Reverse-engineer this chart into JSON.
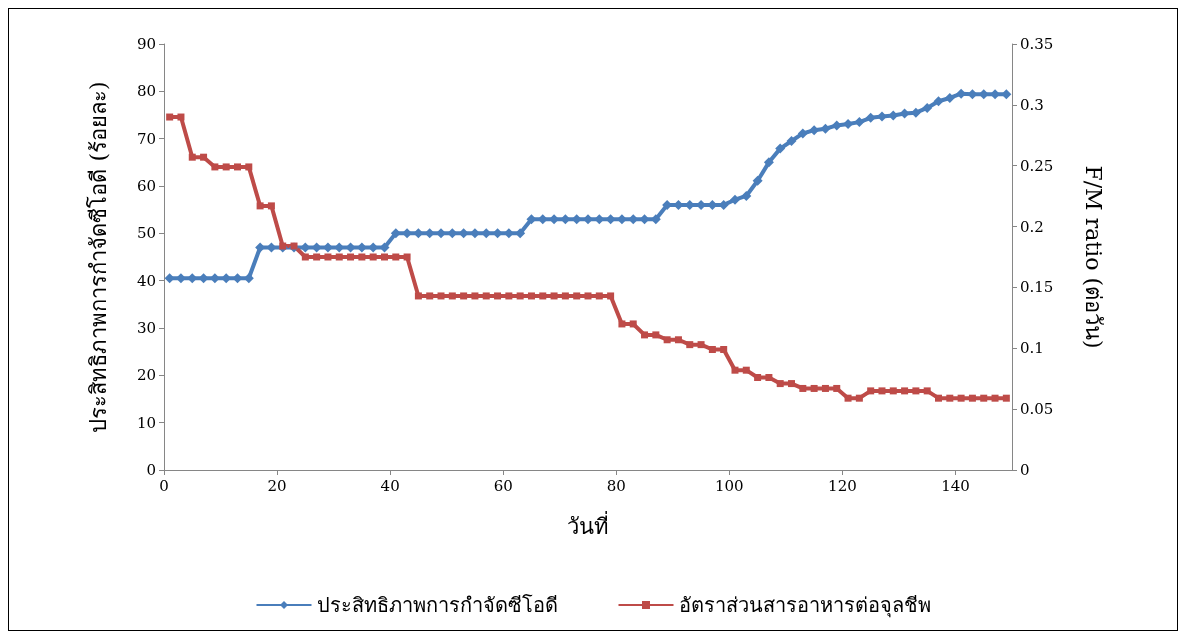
{
  "chart_data": {
    "type": "line",
    "xlabel": "วันที่",
    "ylabel": "ประสิทธิภาพการกำจัดซีโอดี (ร้อยละ)",
    "y2label": "F/M ratio (ต่อวัน)",
    "x": [
      1,
      3,
      5,
      7,
      9,
      11,
      13,
      15,
      17,
      19,
      21,
      23,
      25,
      27,
      29,
      31,
      33,
      35,
      37,
      39,
      41,
      43,
      45,
      47,
      49,
      51,
      53,
      55,
      57,
      59,
      61,
      63,
      65,
      67,
      69,
      71,
      73,
      75,
      77,
      79,
      81,
      83,
      85,
      87,
      89,
      91,
      93,
      95,
      97,
      99,
      101,
      103,
      105,
      107,
      109,
      111,
      113,
      115,
      117,
      119,
      121,
      123,
      125,
      127,
      129,
      131,
      133,
      135,
      137,
      139,
      141,
      143,
      145,
      147,
      149
    ],
    "series": [
      {
        "name": "ประสิทธิภาพการกำจัดซีโอดี",
        "color": "#4a7ebb",
        "marker": "diamond",
        "values": [
          40.5,
          40.5,
          40.5,
          40.5,
          40.5,
          40.5,
          40.5,
          40.5,
          47,
          47,
          47,
          47,
          47,
          47,
          47,
          47,
          47,
          47,
          47,
          47,
          50,
          50,
          50,
          50,
          50,
          50,
          50,
          50,
          50,
          50,
          50,
          50,
          53,
          53,
          53,
          53,
          53,
          53,
          53,
          53,
          53,
          53,
          53,
          53,
          56,
          56,
          56,
          56,
          56,
          56,
          57.1,
          57.9,
          61.1,
          65,
          67.9,
          69.5,
          71.1,
          71.8,
          72.1,
          72.8,
          73.1,
          73.5,
          74.4,
          74.7,
          74.9,
          75.3,
          75.5,
          76.5,
          77.9,
          78.6,
          79.5,
          79.4,
          79.4,
          79.4,
          79.4
        ]
      },
      {
        "name": "อัตราส่วนสารอาหารต่อจุลชีพ",
        "color": "#be4b48",
        "marker": "square",
        "axis": "y2",
        "values": [
          0.29,
          0.29,
          0.257,
          0.257,
          0.249,
          0.249,
          0.249,
          0.249,
          0.217,
          0.217,
          0.184,
          0.184,
          0.175,
          0.175,
          0.175,
          0.175,
          0.175,
          0.175,
          0.175,
          0.175,
          0.175,
          0.175,
          0.143,
          0.143,
          0.143,
          0.143,
          0.143,
          0.143,
          0.143,
          0.143,
          0.143,
          0.143,
          0.143,
          0.143,
          0.143,
          0.143,
          0.143,
          0.143,
          0.143,
          0.143,
          0.12,
          0.12,
          0.111,
          0.111,
          0.107,
          0.107,
          0.103,
          0.103,
          0.099,
          0.099,
          0.082,
          0.082,
          0.076,
          0.076,
          0.071,
          0.071,
          0.067,
          0.067,
          0.067,
          0.067,
          0.059,
          0.059,
          0.065,
          0.065,
          0.065,
          0.065,
          0.065,
          0.065,
          0.059,
          0.059,
          0.059,
          0.059,
          0.059,
          0.059,
          0.059
        ]
      }
    ],
    "xlim": [
      0,
      150
    ],
    "xticks": [
      0,
      20,
      40,
      60,
      80,
      100,
      120,
      140
    ],
    "ylim": [
      0,
      90
    ],
    "yticks": [
      0,
      10,
      20,
      30,
      40,
      50,
      60,
      70,
      80,
      90
    ],
    "y2lim": [
      0,
      0.35
    ],
    "y2ticks": [
      0,
      0.05,
      0.1,
      0.15,
      0.2,
      0.25,
      0.3,
      0.35
    ],
    "grid": false,
    "legend": "bottom",
    "line_style": "solid"
  }
}
